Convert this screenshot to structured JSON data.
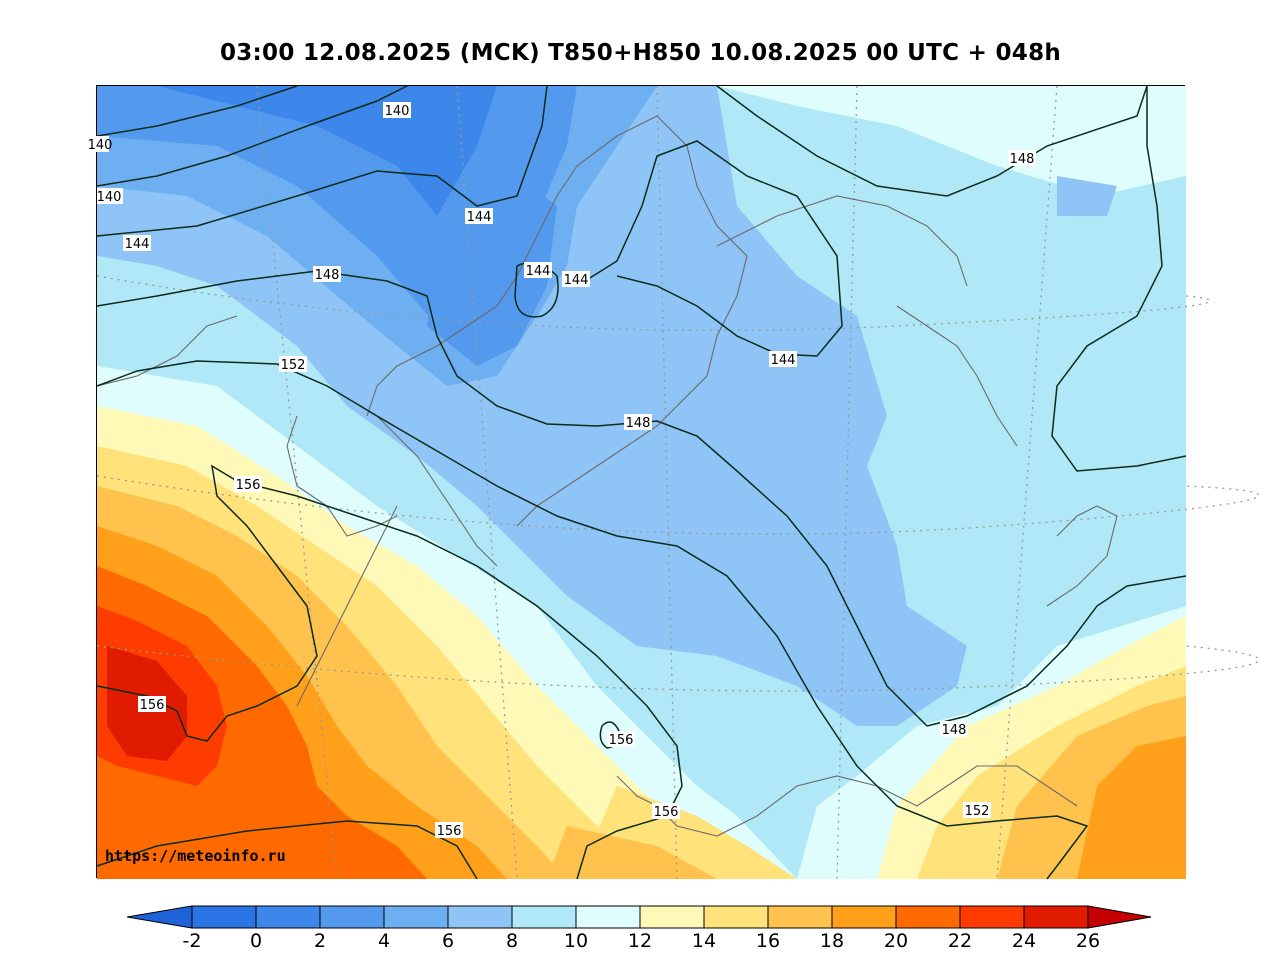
{
  "title": "03:00 12.08.2025 (MCK) T850+H850 10.08.2025 00 UTC + 048h",
  "watermark": "https://meteoinfo.ru",
  "colorbar": {
    "labels": [
      "-2",
      "0",
      "2",
      "4",
      "6",
      "8",
      "10",
      "12",
      "14",
      "16",
      "18",
      "20",
      "22",
      "24",
      "26"
    ],
    "colors": [
      "#2a74e6",
      "#3d86ea",
      "#539aee",
      "#6eaff2",
      "#8ec5f6",
      "#b0e8f8",
      "#dffdfd",
      "#fff9b8",
      "#ffe27a",
      "#ffc24c",
      "#ff9f1a",
      "#ff6a00",
      "#ff3c00",
      "#e11b00"
    ],
    "low_color": "#1e63d8",
    "high_color": "#c40000"
  },
  "contours": {
    "labels": [
      "140",
      "140",
      "140",
      "144",
      "144",
      "144",
      "144",
      "144",
      "148",
      "148",
      "148",
      "148",
      "152",
      "152",
      "156",
      "156",
      "156",
      "156",
      "156"
    ]
  }
}
